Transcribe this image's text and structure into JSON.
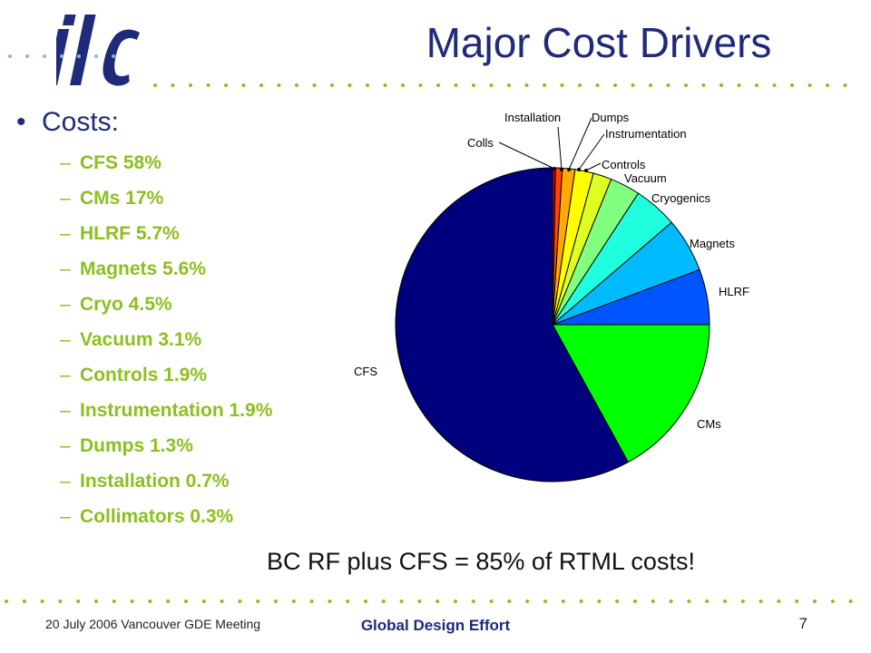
{
  "slide": {
    "title": "Major Cost Drivers",
    "bullet": "Costs:",
    "items": [
      "CFS 58%",
      "CMs 17%",
      "HLRF 5.7%",
      "Magnets 5.6%",
      "Cryo 4.5%",
      "Vacuum 3.1%",
      "Controls 1.9%",
      "Instrumentation 1.9%",
      "Dumps 1.3%",
      "Installation 0.7%",
      "Collimators 0.3%"
    ],
    "callout": "BC RF plus CFS = 85% of RTML costs!",
    "footer": {
      "left": "20 July 2006 Vancouver GDE Meeting",
      "center": "Global Design Effort",
      "page": "7"
    },
    "logo_text": "ilc",
    "colors": {
      "title": "#1f2a7a",
      "subitems": "#8cbf1f"
    }
  },
  "chart_data": {
    "type": "pie",
    "slices": [
      {
        "label": "CFS",
        "value": 58,
        "color": "#00007f"
      },
      {
        "label": "CMs",
        "value": 17,
        "color": "#00ff00"
      },
      {
        "label": "HLRF",
        "value": 5.7,
        "color": "#0055ff"
      },
      {
        "label": "Magnets",
        "value": 5.6,
        "color": "#00bbff"
      },
      {
        "label": "Cryogenics",
        "value": 4.5,
        "color": "#1fffe0"
      },
      {
        "label": "Vacuum",
        "value": 3.1,
        "color": "#80ff80"
      },
      {
        "label": "Controls",
        "value": 1.9,
        "color": "#ddff22"
      },
      {
        "label": "Instrumentation",
        "value": 1.9,
        "color": "#ffff00"
      },
      {
        "label": "Dumps",
        "value": 1.3,
        "color": "#ffaa00"
      },
      {
        "label": "Installation",
        "value": 0.7,
        "color": "#ff4400"
      },
      {
        "label": "Colls",
        "value": 0.3,
        "color": "#cc0000"
      }
    ]
  }
}
